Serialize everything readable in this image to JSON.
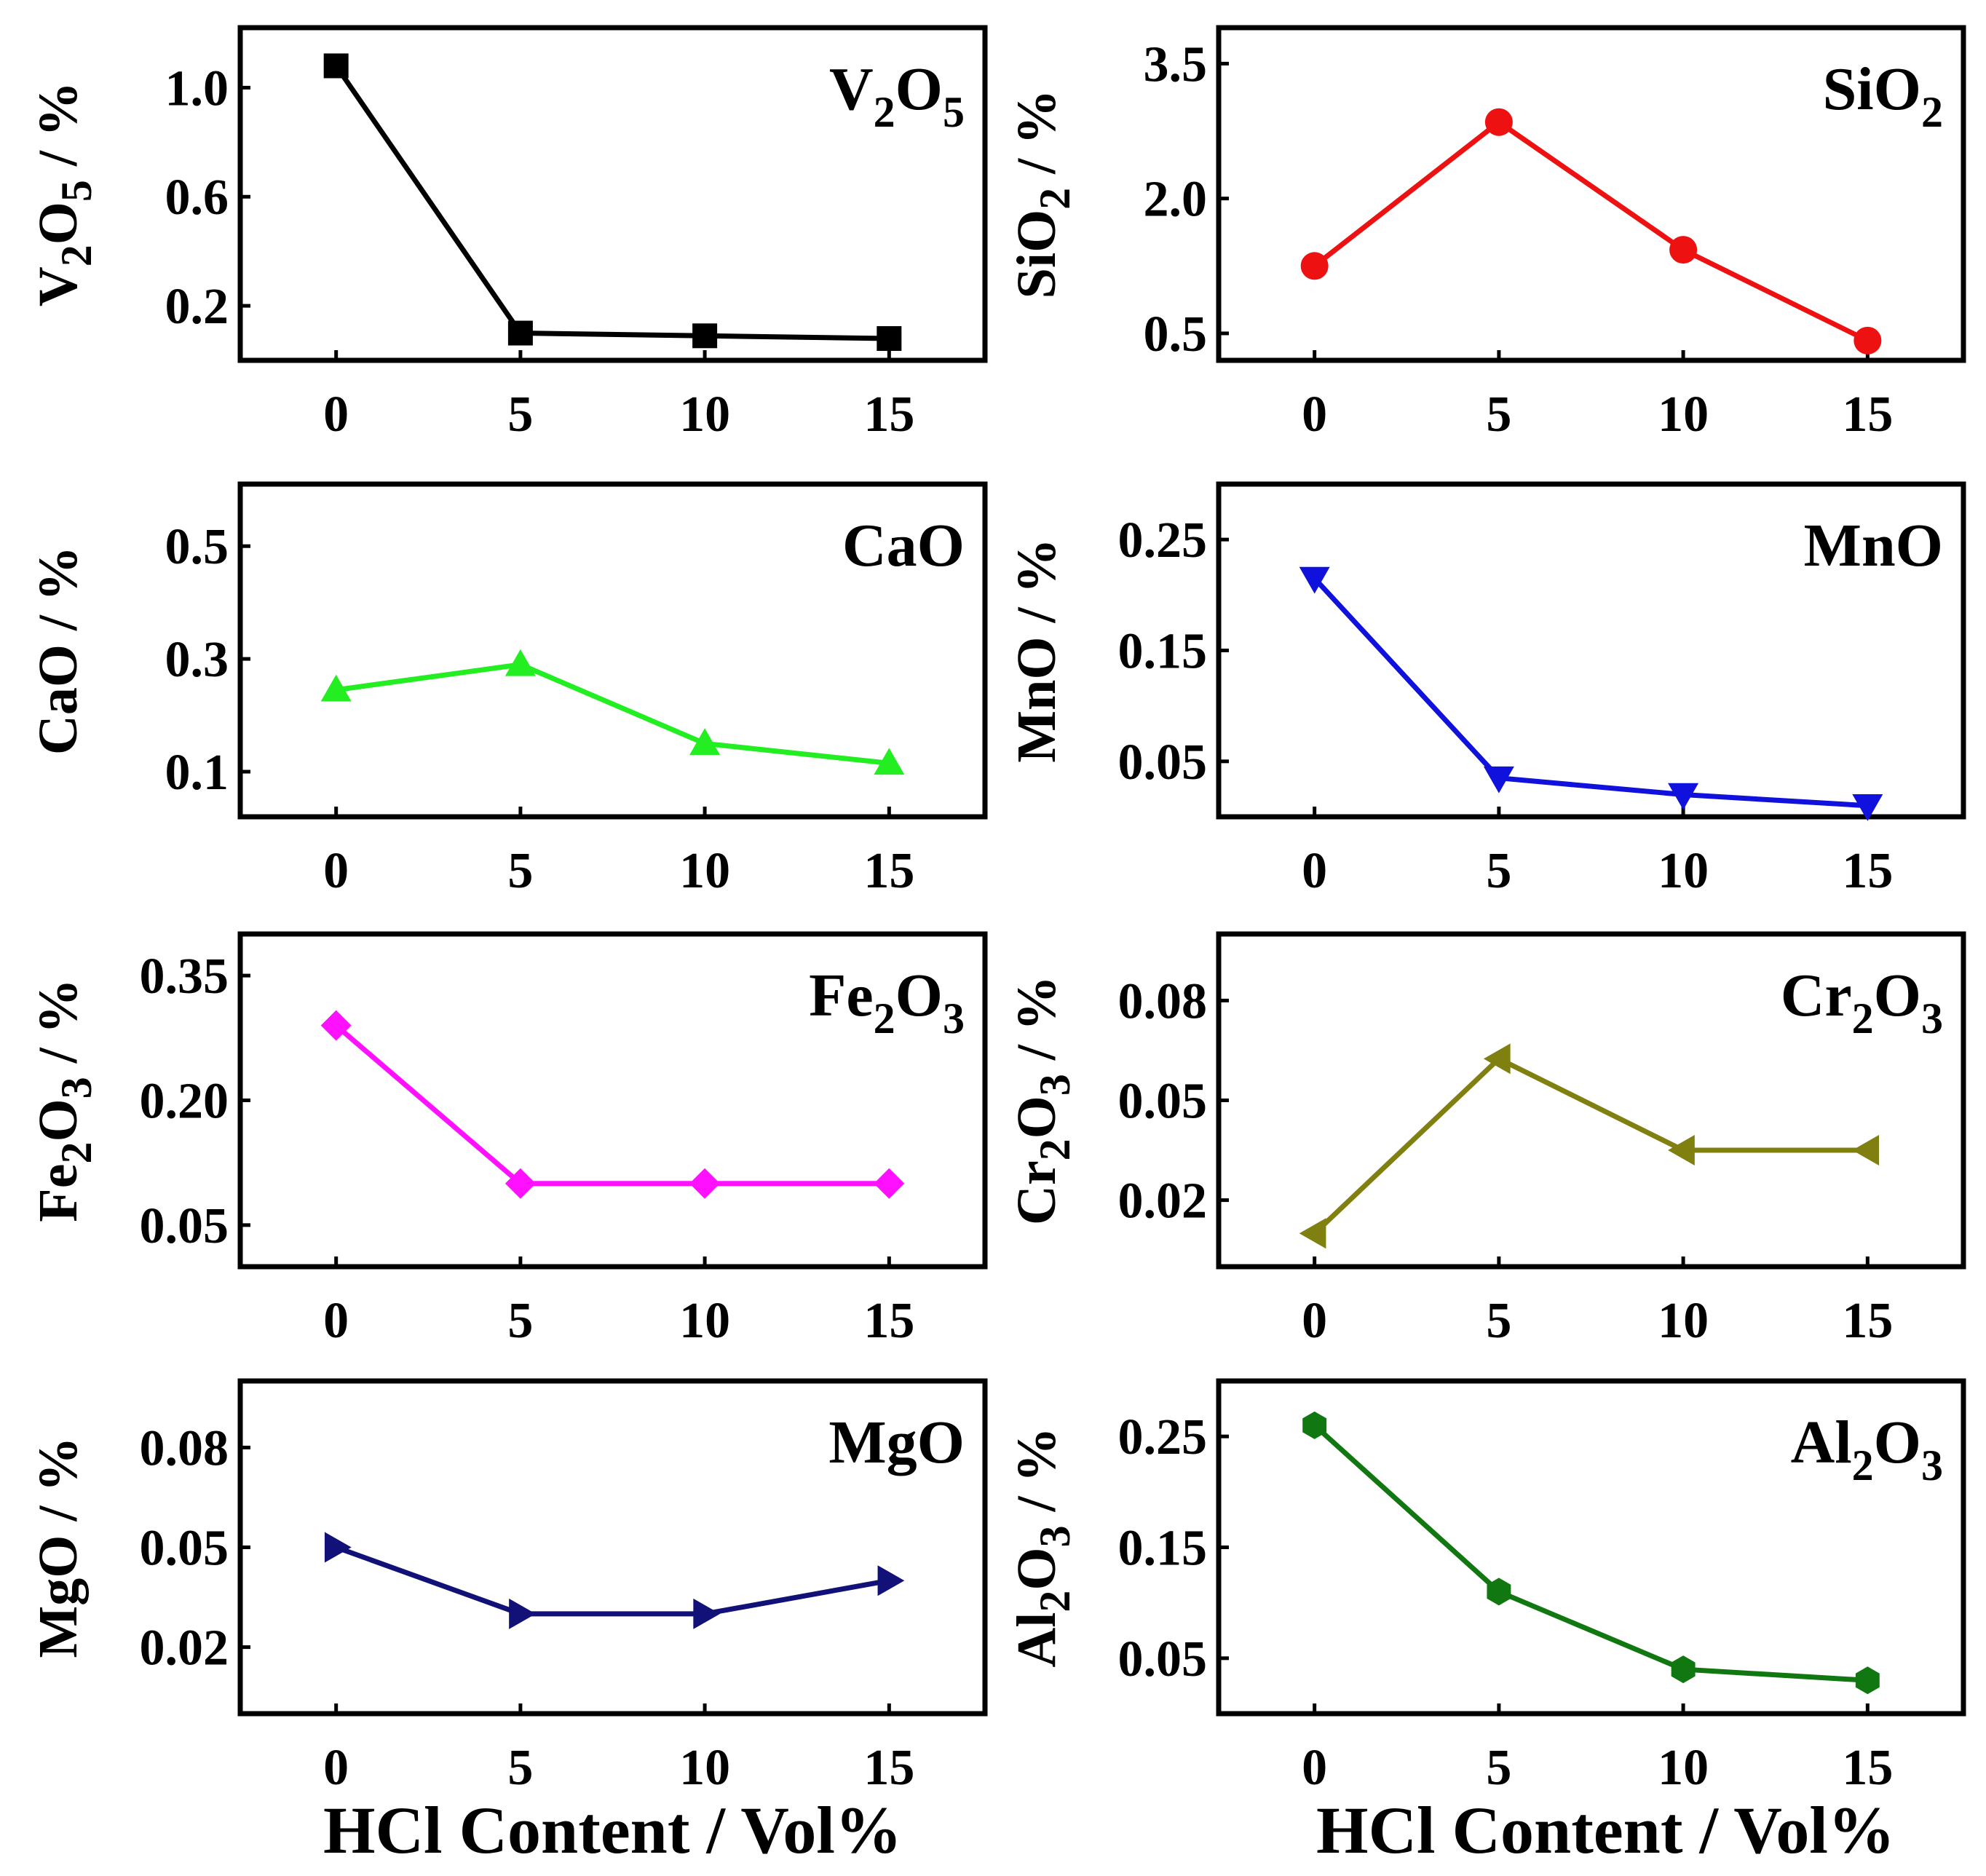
{
  "chart_data": [
    {
      "type": "line",
      "title": "V<sub>2</sub>O<sub>5</sub>",
      "ylabel": "V<sub>2</sub>O<sub>5</sub> / %",
      "xlabel": "",
      "x": [
        0,
        5,
        10,
        15
      ],
      "xlim": [
        -2.6,
        17.6
      ],
      "ylim": [
        0.0,
        1.22
      ],
      "yticks": [
        0.2,
        0.6,
        1.0
      ],
      "ytick_labels": [
        "0.2",
        "0.6",
        "1.0"
      ],
      "series": [
        {
          "values": [
            1.08,
            0.1,
            0.09,
            0.08
          ],
          "color": "#000000",
          "marker": "square"
        }
      ]
    },
    {
      "type": "line",
      "title": "SiO<sub>2</sub>",
      "ylabel": "SiO<sub>2</sub> / %",
      "xlabel": "",
      "x": [
        0,
        5,
        10,
        15
      ],
      "xlim": [
        -2.6,
        17.6
      ],
      "ylim": [
        0.2,
        3.9
      ],
      "yticks": [
        0.5,
        2.0,
        3.5
      ],
      "ytick_labels": [
        "0.5",
        "2.0",
        "3.5"
      ],
      "series": [
        {
          "values": [
            1.25,
            2.85,
            1.43,
            0.42
          ],
          "color": "#ee1111",
          "marker": "circle"
        }
      ]
    },
    {
      "type": "line",
      "title": "CaO",
      "ylabel": "CaO / %",
      "xlabel": "",
      "x": [
        0,
        5,
        10,
        15
      ],
      "xlim": [
        -2.6,
        17.6
      ],
      "ylim": [
        0.02,
        0.61
      ],
      "yticks": [
        0.1,
        0.3,
        0.5
      ],
      "ytick_labels": [
        "0.1",
        "0.3",
        "0.5"
      ],
      "series": [
        {
          "values": [
            0.245,
            0.29,
            0.15,
            0.115
          ],
          "color": "#22ee22",
          "marker": "triangle-up"
        }
      ]
    },
    {
      "type": "line",
      "title": "MnO",
      "ylabel": "MnO / %",
      "xlabel": "",
      "x": [
        0,
        5,
        10,
        15
      ],
      "xlim": [
        -2.6,
        17.6
      ],
      "ylim": [
        0.0,
        0.3
      ],
      "yticks": [
        0.05,
        0.15,
        0.25
      ],
      "ytick_labels": [
        "0.05",
        "0.15",
        "0.25"
      ],
      "series": [
        {
          "values": [
            0.215,
            0.035,
            0.02,
            0.01
          ],
          "color": "#1111dd",
          "marker": "triangle-down"
        }
      ]
    },
    {
      "type": "line",
      "title": "Fe<sub>2</sub>O<sub>3</sub>",
      "ylabel": "Fe<sub>2</sub>O<sub>3</sub> / %",
      "xlabel": "",
      "x": [
        0,
        5,
        10,
        15
      ],
      "xlim": [
        -2.6,
        17.6
      ],
      "ylim": [
        0.0,
        0.4
      ],
      "yticks": [
        0.05,
        0.2,
        0.35
      ],
      "ytick_labels": [
        "0.05",
        "0.20",
        "0.35"
      ],
      "series": [
        {
          "values": [
            0.29,
            0.1,
            0.1,
            0.1
          ],
          "color": "#ff11ff",
          "marker": "diamond"
        }
      ]
    },
    {
      "type": "line",
      "title": "Cr<sub>2</sub>O<sub>3</sub>",
      "ylabel": "Cr<sub>2</sub>O<sub>3</sub> / %",
      "xlabel": "",
      "x": [
        0,
        5,
        10,
        15
      ],
      "xlim": [
        -2.6,
        17.6
      ],
      "ylim": [
        0.0,
        0.1
      ],
      "yticks": [
        0.02,
        0.05,
        0.08
      ],
      "ytick_labels": [
        "0.02",
        "0.05",
        "0.08"
      ],
      "series": [
        {
          "values": [
            0.01,
            0.0625,
            0.035,
            0.035
          ],
          "color": "#808010",
          "marker": "triangle-left"
        }
      ]
    },
    {
      "type": "line",
      "title": "MgO",
      "ylabel": "MgO / %",
      "xlabel": "HCl Content / Vol%",
      "x": [
        0,
        5,
        10,
        15
      ],
      "xlim": [
        -2.6,
        17.6
      ],
      "ylim": [
        0.0,
        0.1
      ],
      "yticks": [
        0.02,
        0.05,
        0.08
      ],
      "ytick_labels": [
        "0.02",
        "0.05",
        "0.08"
      ],
      "series": [
        {
          "values": [
            0.05,
            0.03,
            0.03,
            0.04
          ],
          "color": "#111177",
          "marker": "triangle-right"
        }
      ]
    },
    {
      "type": "line",
      "title": "Al<sub>2</sub>O<sub>3</sub>",
      "ylabel": "Al<sub>2</sub>O<sub>3</sub> / %",
      "xlabel": "HCl Content / Vol%",
      "x": [
        0,
        5,
        10,
        15
      ],
      "xlim": [
        -2.6,
        17.6
      ],
      "ylim": [
        0.0,
        0.3
      ],
      "yticks": [
        0.05,
        0.15,
        0.25
      ],
      "ytick_labels": [
        "0.05",
        "0.15",
        "0.25"
      ],
      "series": [
        {
          "values": [
            0.26,
            0.11,
            0.04,
            0.03
          ],
          "color": "#117711",
          "marker": "hexagon"
        }
      ]
    }
  ]
}
